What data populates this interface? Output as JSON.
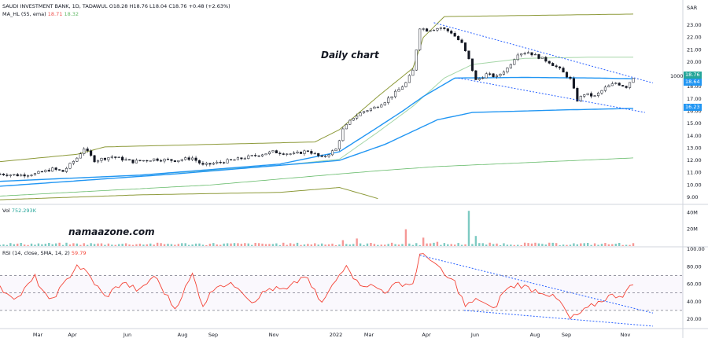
{
  "header": {
    "symbol_line": "SAUDI INVESTMENT BANK, 1D, TADAWUL",
    "ohlc": "O18.28 H18.76 L18.04 C18.76 +0.48 (+2.63%)",
    "ma_label": "MA_HL (55, ema)",
    "ma_v1": "18.71",
    "ma_v2": "18.32",
    "vol_label": "Vol",
    "vol_value": "752.293K",
    "rsi_label": "RSI (14, close, SMA, 14, 2)",
    "rsi_value": "59.79",
    "currency": "SAR"
  },
  "annotations": {
    "daily_chart": "Daily chart",
    "watermark": "namaazone.com",
    "level_1000": "1000"
  },
  "price_badges": {
    "close": "18.76",
    "ma_mid": "18.64",
    "ma_long": "16.23",
    "close_color": "#26a69a",
    "ma_color": "#2196f3"
  },
  "colors": {
    "up": "#26a69a",
    "down": "#ef5350",
    "candle": "#131722",
    "ma_blue": "#2196f3",
    "envelope": "#8d9a3a",
    "rsi": "#f44336",
    "trend": "#2962ff",
    "green_line": "#66bb6a"
  },
  "chart_data": [
    {
      "type": "candlestick",
      "name": "price",
      "ylim": [
        8.5,
        24
      ],
      "yticks": [
        "9.00",
        "10.00",
        "11.00",
        "12.00",
        "13.00",
        "14.00",
        "15.00",
        "16.00",
        "17.00",
        "18.00",
        "19.00",
        "20.00",
        "21.00",
        "22.00",
        "23.00"
      ],
      "xticks": [
        "Mar",
        "Apr",
        "Jun",
        "Aug",
        "Sep",
        "Nov",
        "2022",
        "Mar",
        "Apr",
        "Jun",
        "Aug",
        "Sep",
        "Nov"
      ],
      "close_path": [
        [
          0,
          10.9
        ],
        [
          5,
          10.8
        ],
        [
          10,
          10.9
        ],
        [
          15,
          11.3
        ],
        [
          18,
          11.1
        ],
        [
          22,
          12.2
        ],
        [
          24,
          13.0
        ],
        [
          27,
          12.0
        ],
        [
          32,
          12.3
        ],
        [
          38,
          11.9
        ],
        [
          44,
          12.1
        ],
        [
          50,
          12.0
        ],
        [
          55,
          12.2
        ],
        [
          58,
          11.6
        ],
        [
          62,
          11.8
        ],
        [
          68,
          12.1
        ],
        [
          73,
          12.4
        ],
        [
          78,
          12.7
        ],
        [
          84,
          12.5
        ],
        [
          88,
          12.8
        ],
        [
          92,
          12.2
        ],
        [
          96,
          12.9
        ],
        [
          98,
          14.5
        ],
        [
          101,
          15.5
        ],
        [
          104,
          16.0
        ],
        [
          107,
          16.3
        ],
        [
          110,
          16.8
        ],
        [
          113,
          17.5
        ],
        [
          116,
          18.3
        ],
        [
          118,
          19.3
        ],
        [
          120,
          22.8
        ],
        [
          122,
          22.6
        ],
        [
          126,
          22.8
        ],
        [
          129,
          22.4
        ],
        [
          132,
          21.5
        ],
        [
          134,
          20.2
        ],
        [
          136,
          18.5
        ],
        [
          139,
          19.0
        ],
        [
          142,
          18.8
        ],
        [
          145,
          19.5
        ],
        [
          148,
          20.7
        ],
        [
          151,
          20.8
        ],
        [
          154,
          20.4
        ],
        [
          157,
          20.0
        ],
        [
          160,
          19.4
        ],
        [
          163,
          18.6
        ],
        [
          165,
          16.9
        ],
        [
          167,
          17.4
        ],
        [
          170,
          17.2
        ],
        [
          173,
          17.9
        ],
        [
          176,
          18.3
        ],
        [
          179,
          18.0
        ],
        [
          181,
          18.76
        ]
      ],
      "series": [
        {
          "name": "MA_HL upper",
          "values": [
            [
              0,
              11.9
            ],
            [
              22,
              12.5
            ],
            [
              30,
              13.1
            ],
            [
              60,
              13.3
            ],
            [
              90,
              13.5
            ],
            [
              97,
              14.5
            ],
            [
              108,
              17.2
            ],
            [
              118,
              19.5
            ],
            [
              121,
              22.0
            ],
            [
              127,
              23.7
            ],
            [
              181,
              23.9
            ]
          ]
        },
        {
          "name": "MA_HL mid",
          "values": [
            [
              0,
              10.3
            ],
            [
              40,
              10.8
            ],
            [
              80,
              11.6
            ],
            [
              97,
              12.1
            ],
            [
              108,
              14.3
            ],
            [
              118,
              16.4
            ],
            [
              127,
              18.7
            ],
            [
              135,
              19.8
            ],
            [
              150,
              20.3
            ],
            [
              170,
              20.4
            ],
            [
              181,
              20.4
            ]
          ]
        },
        {
          "name": "MA_HL 55 ema",
          "values": [
            [
              0,
              10.3
            ],
            [
              40,
              10.8
            ],
            [
              80,
              11.7
            ],
            [
              97,
              12.7
            ],
            [
              108,
              14.7
            ],
            [
              115,
              16.0
            ],
            [
              121,
              17.2
            ],
            [
              130,
              18.7
            ],
            [
              150,
              18.75
            ],
            [
              170,
              18.7
            ],
            [
              181,
              18.64
            ]
          ]
        },
        {
          "name": "MA long",
          "values": [
            [
              0,
              9.9
            ],
            [
              50,
              10.9
            ],
            [
              97,
              12.0
            ],
            [
              110,
              13.3
            ],
            [
              125,
              15.3
            ],
            [
              135,
              15.9
            ],
            [
              160,
              16.1
            ],
            [
              181,
              16.23
            ]
          ]
        },
        {
          "name": "MA green",
          "values": [
            [
              0,
              9.1
            ],
            [
              60,
              10.0
            ],
            [
              97,
              10.9
            ],
            [
              110,
              11.2
            ],
            [
              125,
              11.5
            ],
            [
              181,
              12.2
            ]
          ]
        },
        {
          "name": "MA_HL lower",
          "values": [
            [
              0,
              8.8
            ],
            [
              40,
              9.2
            ],
            [
              80,
              9.4
            ],
            [
              97,
              9.8
            ],
            [
              108,
              8.9
            ]
          ]
        }
      ]
    },
    {
      "type": "bar",
      "name": "volume",
      "ylim": [
        0,
        45
      ],
      "yticks": [
        "20M",
        "40M"
      ],
      "spikes": [
        [
          98,
          7
        ],
        [
          102,
          9
        ],
        [
          116,
          20
        ],
        [
          121,
          10
        ],
        [
          125,
          5
        ],
        [
          134,
          42
        ],
        [
          136,
          12
        ],
        [
          150,
          4
        ]
      ]
    },
    {
      "type": "line",
      "name": "RSI",
      "ylim": [
        0,
        100
      ],
      "yticks": [
        "20.00",
        "40.00",
        "60.00",
        "80.00",
        "100.00"
      ],
      "bands": [
        30,
        50,
        70
      ],
      "values": [
        [
          0,
          55
        ],
        [
          5,
          44
        ],
        [
          10,
          68
        ],
        [
          14,
          40
        ],
        [
          18,
          58
        ],
        [
          22,
          82
        ],
        [
          25,
          72
        ],
        [
          30,
          45
        ],
        [
          35,
          62
        ],
        [
          40,
          52
        ],
        [
          44,
          70
        ],
        [
          50,
          32
        ],
        [
          55,
          71
        ],
        [
          58,
          36
        ],
        [
          62,
          60
        ],
        [
          68,
          58
        ],
        [
          72,
          40
        ],
        [
          77,
          55
        ],
        [
          82,
          53
        ],
        [
          87,
          70
        ],
        [
          92,
          38
        ],
        [
          96,
          64
        ],
        [
          99,
          84
        ],
        [
          102,
          62
        ],
        [
          106,
          58
        ],
        [
          110,
          52
        ],
        [
          114,
          61
        ],
        [
          118,
          60
        ],
        [
          120,
          93
        ],
        [
          123,
          90
        ],
        [
          127,
          70
        ],
        [
          130,
          62
        ],
        [
          133,
          35
        ],
        [
          137,
          43
        ],
        [
          141,
          30
        ],
        [
          144,
          52
        ],
        [
          148,
          60
        ],
        [
          152,
          54
        ],
        [
          156,
          50
        ],
        [
          160,
          40
        ],
        [
          163,
          20
        ],
        [
          166,
          27
        ],
        [
          170,
          37
        ],
        [
          174,
          46
        ],
        [
          178,
          48
        ],
        [
          181,
          59.79
        ]
      ]
    }
  ]
}
